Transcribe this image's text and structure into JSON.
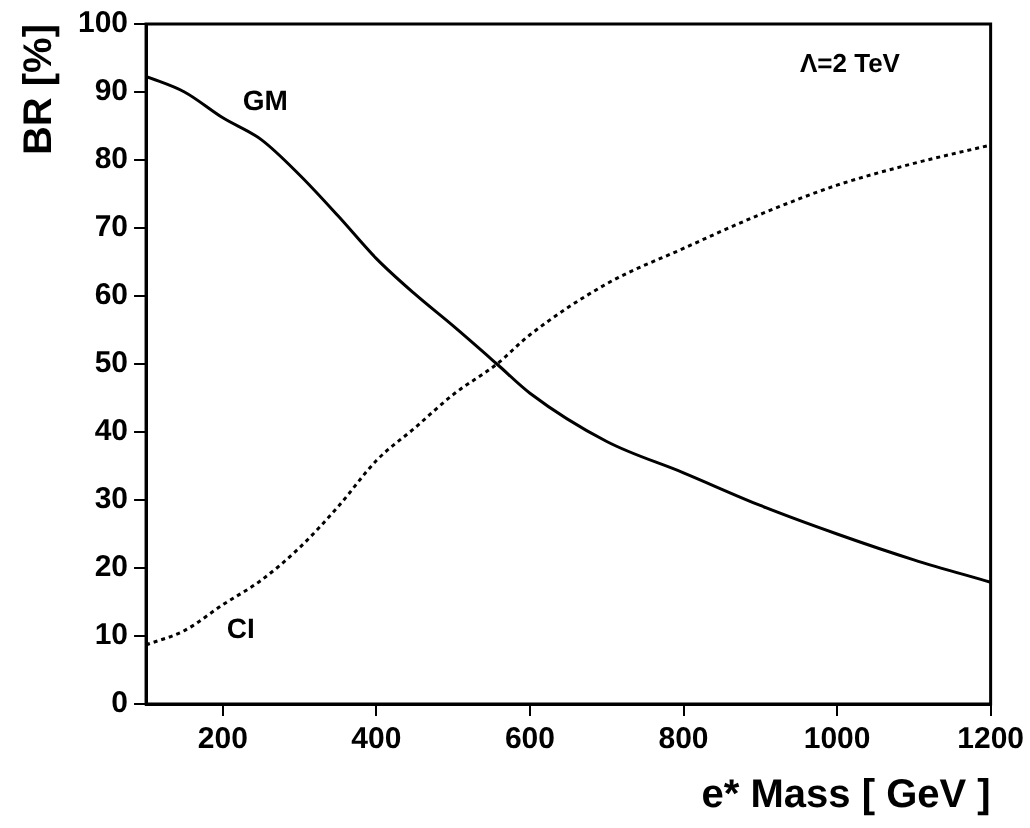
{
  "chart_data": {
    "type": "line",
    "xlabel": "e* Mass [ GeV ]",
    "ylabel": "BR [%]",
    "annotations": [
      "Λ=2 TeV"
    ],
    "x": [
      100,
      150,
      200,
      250,
      300,
      350,
      400,
      450,
      500,
      557,
      600,
      700,
      800,
      900,
      1000,
      1100,
      1200
    ],
    "xlim": [
      100,
      1200
    ],
    "xticks": [
      200,
      400,
      600,
      800,
      1000,
      1200
    ],
    "ylim": [
      0,
      100
    ],
    "yticks": [
      0,
      10,
      20,
      30,
      40,
      50,
      60,
      70,
      80,
      90,
      100
    ],
    "grid": false,
    "legend": false,
    "marker": "none",
    "series": [
      {
        "name": "GM",
        "color": "#000000",
        "line_style": "solid",
        "values": [
          92.3,
          90,
          86.2,
          83,
          77.8,
          71.8,
          65.5,
          60.3,
          55.6,
          50,
          45.7,
          38.6,
          34,
          29.2,
          25,
          21.2,
          17.9
        ]
      },
      {
        "name": "CI",
        "color": "#000000",
        "line_style": "dotted",
        "values": [
          8.7,
          10.8,
          14.6,
          18.2,
          23,
          29,
          35.8,
          40.6,
          45.5,
          50,
          54.3,
          61.8,
          67,
          72,
          76.3,
          79.5,
          82.2
        ]
      }
    ]
  }
}
